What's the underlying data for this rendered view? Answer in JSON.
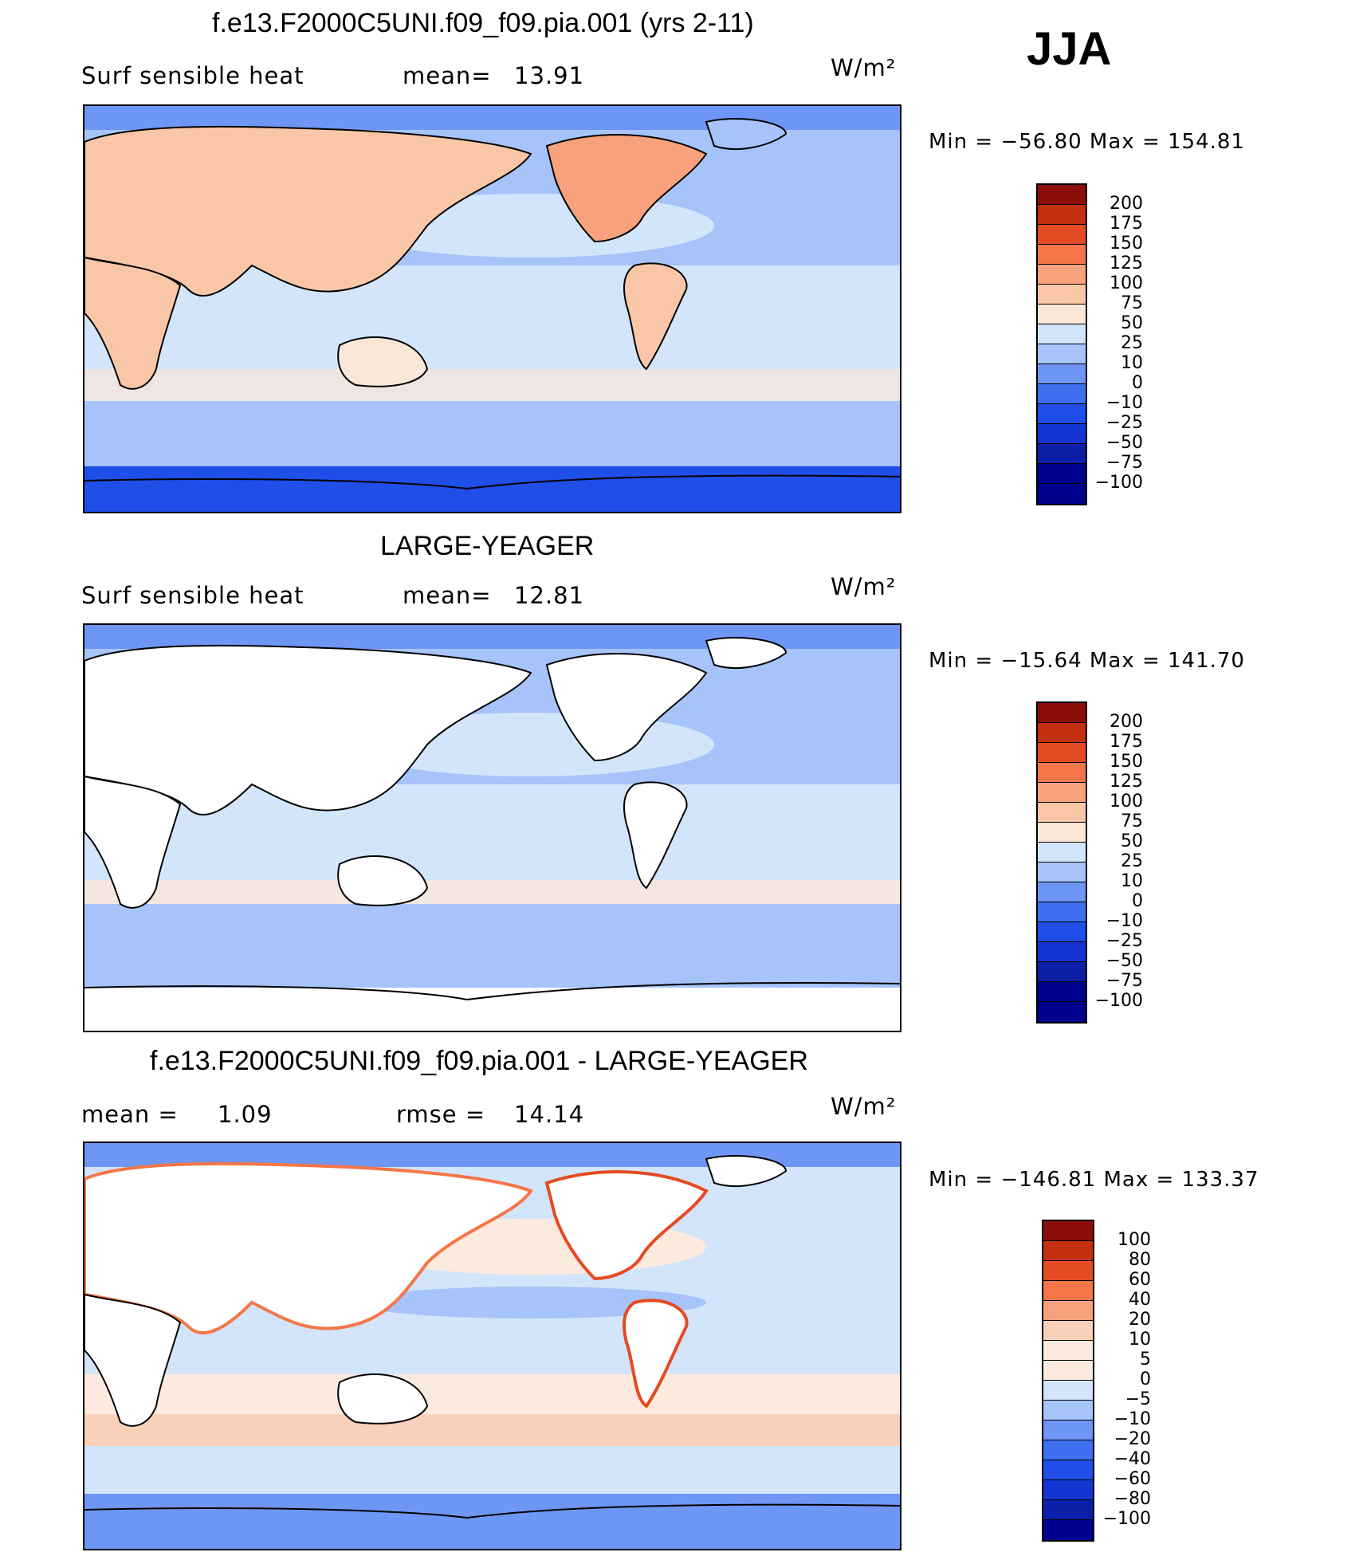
{
  "season": "JJA",
  "colors": {
    "abs_scale": [
      "#00008c",
      "#0b1fa9",
      "#1435d0",
      "#1f4ee8",
      "#3d6ff0",
      "#6e96f5",
      "#a6c4fa",
      "#d3e5fb",
      "#fbe7d8",
      "#f9c7a8",
      "#f7a27c",
      "#f57648",
      "#e54b22",
      "#c4300f",
      "#8b0e0a"
    ],
    "diff_scale": [
      "#00008c",
      "#0b1fa9",
      "#1435d0",
      "#1f4ee8",
      "#3d6ff0",
      "#6e96f5",
      "#a6c4fa",
      "#d3e5fb",
      "#fbeadd",
      "#f9d0b8",
      "#f7a27c",
      "#f57648",
      "#e54b22",
      "#c4300f",
      "#8b0e0a"
    ],
    "land": "#ffffff",
    "coast": "#000000"
  },
  "panels": [
    {
      "title": "f.e13.F2000C5UNI.f09_f09.pia.001 (yrs 2-11)",
      "variable": "Surf  sensible  heat",
      "stat_label": "mean=",
      "stat_value": "13.91",
      "units": "W/m²",
      "minmax": "Min  =  −56.80  Max  =  154.81",
      "cbar_labels": [
        "200",
        "175",
        "150",
        "125",
        "100",
        "75",
        "50",
        "25",
        "10",
        "0",
        "−10",
        "−25",
        "−50",
        "−75",
        "−100"
      ]
    },
    {
      "title": "LARGE-YEAGER",
      "variable": "Surf  sensible  heat",
      "stat_label": "mean=",
      "stat_value": "12.81",
      "units": "W/m²",
      "minmax": "Min  =  −15.64  Max  =  141.70",
      "cbar_labels": [
        "200",
        "175",
        "150",
        "125",
        "100",
        "75",
        "50",
        "25",
        "10",
        "0",
        "−10",
        "−25",
        "−50",
        "−75",
        "−100"
      ]
    },
    {
      "title": "f.e13.F2000C5UNI.f09_f09.pia.001 - LARGE-YEAGER",
      "stat1_label": "mean  =",
      "stat1_value": "1.09",
      "stat2_label": "rmse  =",
      "stat2_value": "14.14",
      "units": "W/m²",
      "minmax": "Min  =  −146.81  Max  =  133.37",
      "cbar_labels": [
        "100",
        "80",
        "60",
        "40",
        "20",
        "10",
        "5",
        "0",
        "−5",
        "−10",
        "−20",
        "−40",
        "−60",
        "−80",
        "−100"
      ]
    }
  ]
}
